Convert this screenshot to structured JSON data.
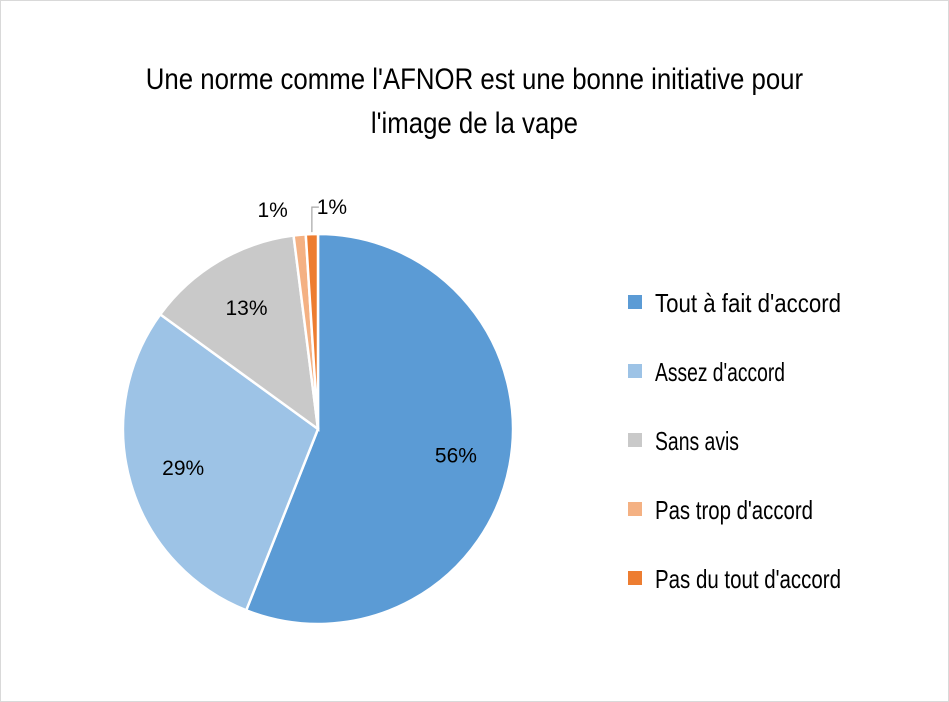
{
  "chart_data": {
    "type": "pie",
    "title_lines": [
      "Une norme comme l'AFNOR est une bonne initiative pour",
      "l'image de la vape"
    ],
    "categories": [
      "Tout à fait d'accord",
      "Assez d'accord",
      "Sans avis",
      "Pas trop d'accord",
      "Pas du tout d'accord"
    ],
    "values": [
      56,
      29,
      13,
      1,
      1
    ],
    "labels": [
      "56%",
      "29%",
      "13%",
      "1%",
      "1%"
    ],
    "colors": [
      "#5b9bd5",
      "#9dc3e6",
      "#c9c9c9",
      "#f4b183",
      "#ed7d31"
    ],
    "legend_position": "right"
  }
}
